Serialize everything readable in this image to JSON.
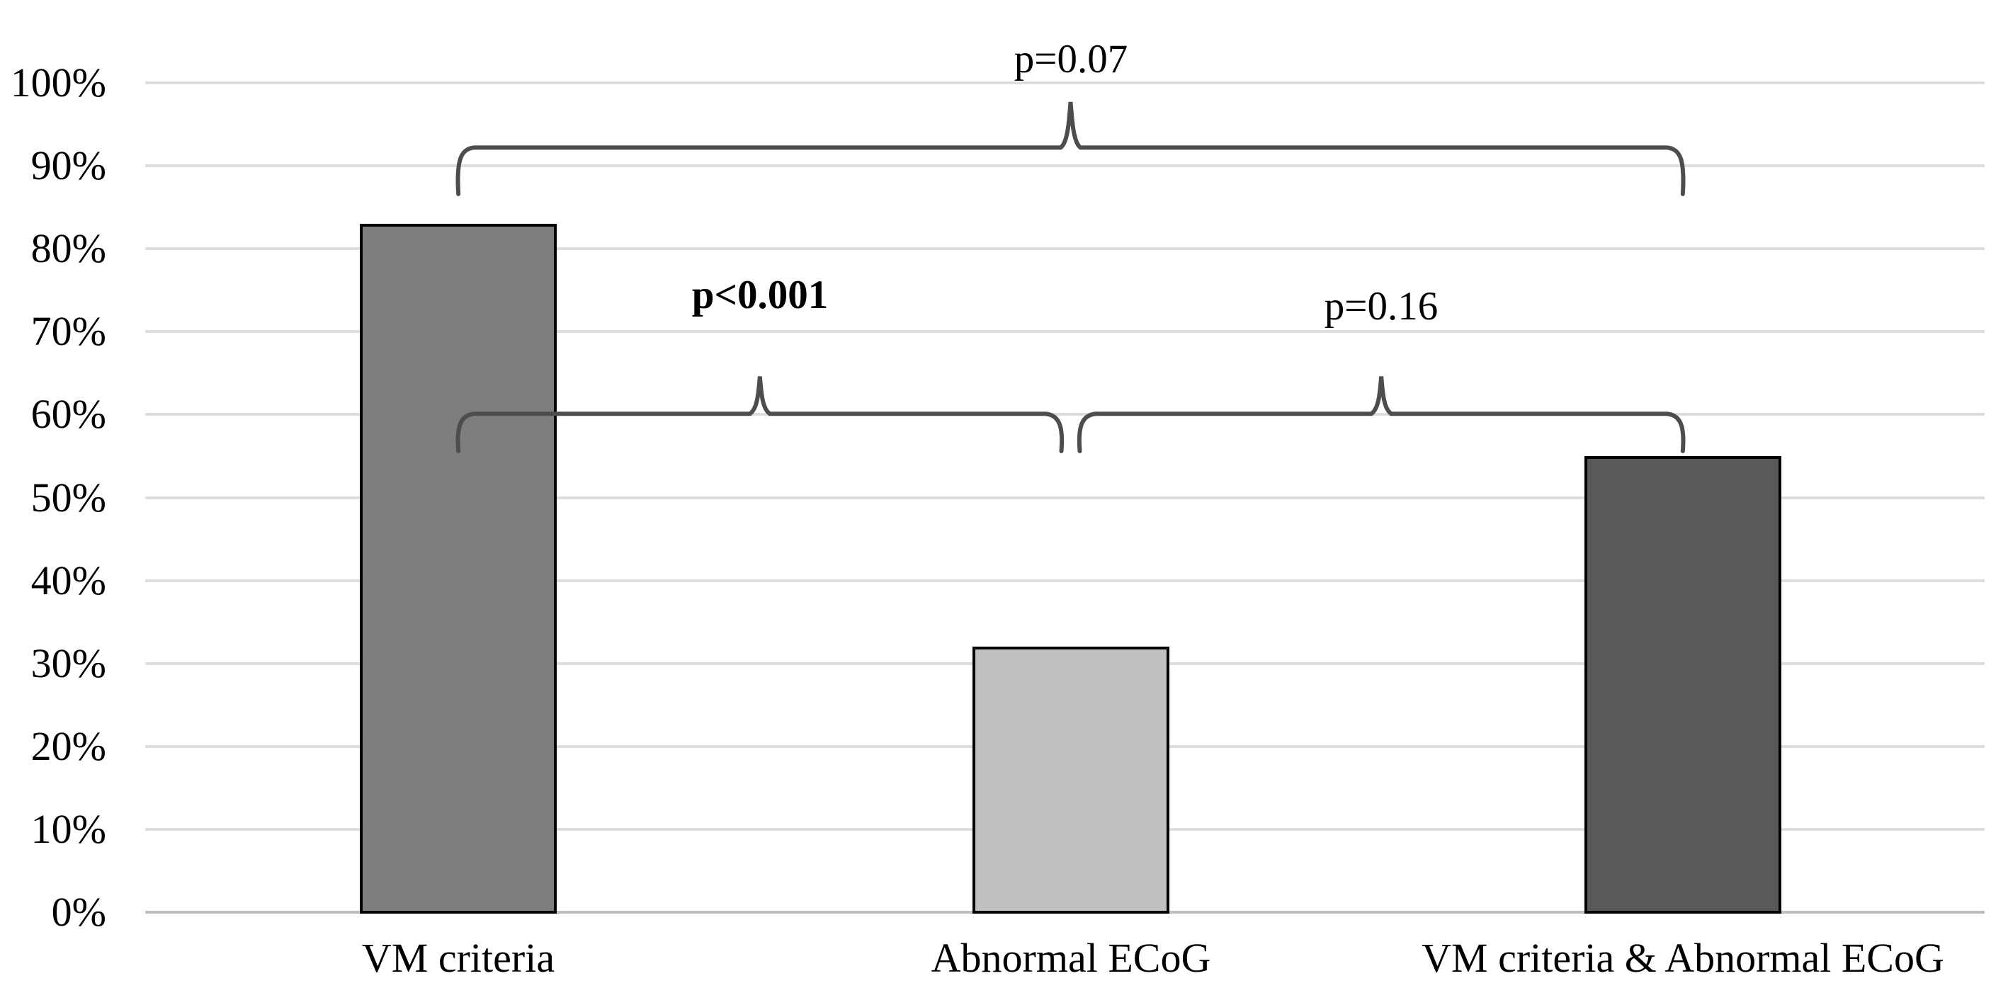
{
  "chart_data": {
    "type": "bar",
    "title": "",
    "categories": [
      "VM criteria",
      "Abnormal ECoG",
      "VM criteria & Abnormal ECoG"
    ],
    "values": [
      83,
      32,
      55
    ],
    "value_unit": "%",
    "ylim": [
      0,
      100
    ],
    "y_ticks": [
      "0%",
      "10%",
      "20%",
      "30%",
      "40%",
      "50%",
      "60%",
      "70%",
      "80%",
      "90%",
      "100%"
    ],
    "grid": true,
    "legend": "none",
    "bar_colors": [
      "#7e7e7e",
      "#c0c0c0",
      "#595959"
    ],
    "bar_border_color": "#000000",
    "gridline_color": "#dedede",
    "axis_line_color": "#bfbfbf",
    "bracket_color": "#4d4d4d",
    "annotations": [
      {
        "text": "p=0.07",
        "bold": false,
        "between": [
          "VM criteria",
          "VM criteria & Abnormal ECoG"
        ],
        "span": [
          0,
          2
        ],
        "line_pct": 92.2,
        "peak_pct": 97.7,
        "tail_pct": 86.6,
        "label_pct": 102.8
      },
      {
        "text": "p<0.001",
        "bold": true,
        "between": [
          "VM criteria",
          "Abnormal ECoG"
        ],
        "span": [
          0,
          1
        ],
        "line_pct": 60.1,
        "peak_pct": 64.6,
        "tail_pct": 55.6,
        "label_pct": 74.4
      },
      {
        "text": "p=0.16",
        "bold": false,
        "between": [
          "Abnormal ECoG",
          "VM criteria & Abnormal ECoG"
        ],
        "span": [
          1,
          2
        ],
        "line_pct": 60.1,
        "peak_pct": 64.6,
        "tail_pct": 55.6,
        "label_pct": 73.0
      }
    ]
  }
}
